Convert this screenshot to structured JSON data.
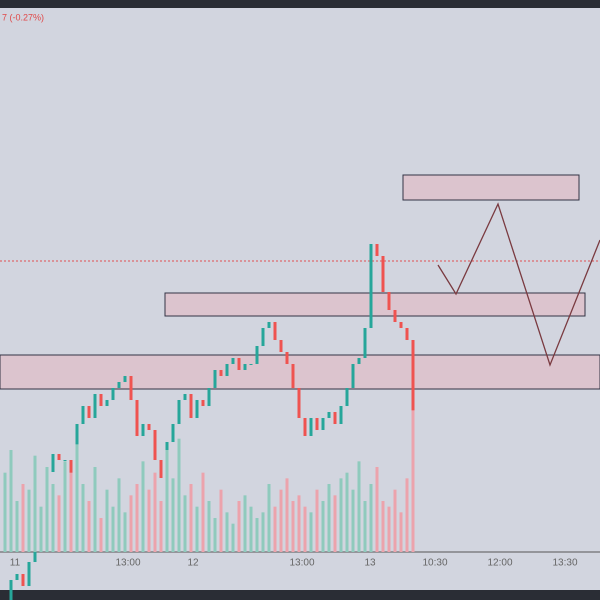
{
  "header": {
    "change": "7 (-0.27%)"
  },
  "chart_data": {
    "type": "candlestick",
    "x_labels": [
      "11",
      "13:00",
      "12",
      "13:00",
      "13",
      "10:30",
      "12:00",
      "13:30"
    ],
    "open": 170,
    "values": [
      180,
      200,
      205,
      195,
      215,
      240,
      260,
      290,
      305,
      300,
      300,
      275,
      330,
      345,
      335,
      355,
      345,
      350,
      360,
      365,
      370,
      350,
      320,
      330,
      325,
      300,
      285,
      315,
      330,
      350,
      355,
      335,
      350,
      345,
      360,
      375,
      370,
      380,
      385,
      375,
      380,
      380,
      395,
      410,
      415,
      400,
      390,
      380,
      360,
      335,
      320,
      335,
      325,
      335,
      340,
      330,
      345,
      360,
      380,
      385,
      410,
      480,
      470,
      440,
      425,
      415,
      410,
      400,
      338
    ],
    "volume": [
      70,
      90,
      45,
      60,
      55,
      85,
      40,
      75,
      60,
      50,
      80,
      70,
      95,
      60,
      45,
      75,
      30,
      55,
      40,
      65,
      35,
      50,
      60,
      80,
      55,
      70,
      45,
      90,
      65,
      100,
      50,
      60,
      40,
      70,
      45,
      30,
      55,
      35,
      25,
      45,
      50,
      40,
      30,
      35,
      60,
      40,
      55,
      65,
      45,
      50,
      40,
      35,
      55,
      45,
      60,
      50,
      65,
      70,
      55,
      80,
      45,
      60,
      75,
      45,
      40,
      55,
      35,
      65,
      125
    ],
    "ylim": [
      100,
      600
    ],
    "vlim": [
      0,
      150
    ],
    "up_color": "#26a69a",
    "down_color": "#ef5350",
    "up_volume_color": "#8fcabd",
    "down_volume_color": "#eca3ac"
  }
}
